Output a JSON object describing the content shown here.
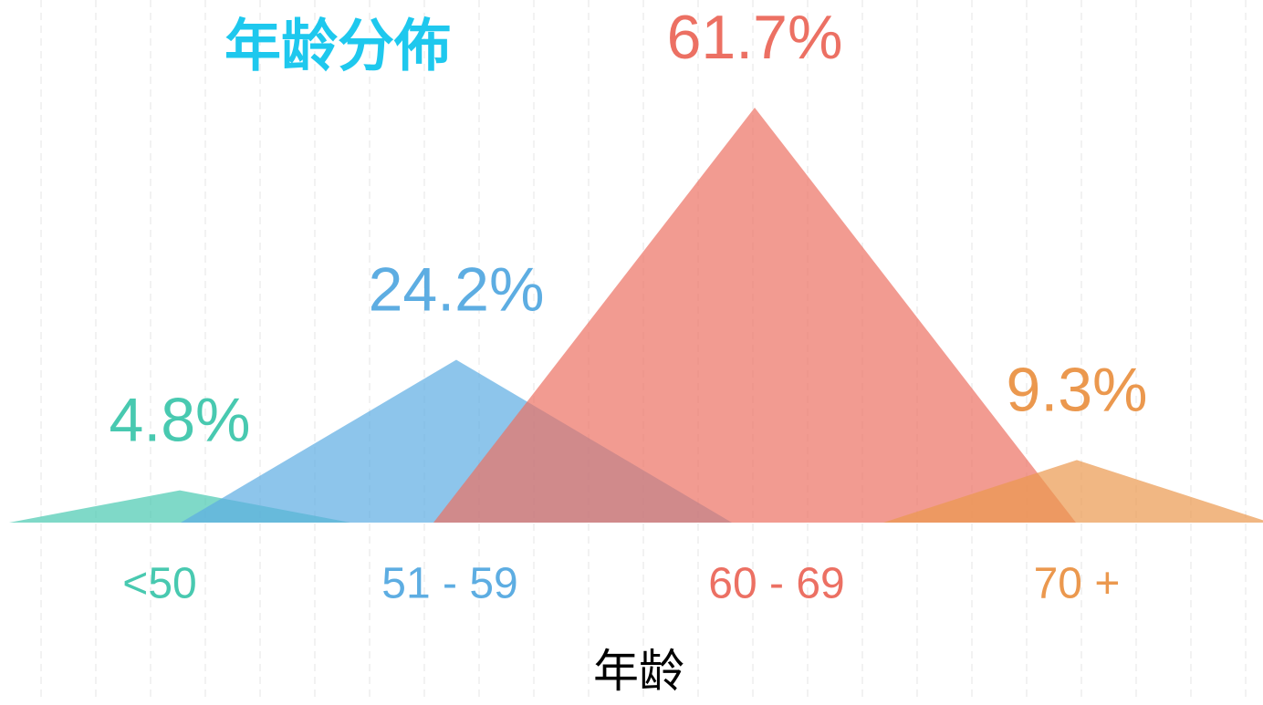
{
  "chart_data": {
    "type": "triangle_bar",
    "title": "年龄分佈",
    "x_label": "年龄",
    "categories": [
      "<50",
      "51 - 59",
      "60 - 69",
      "70 +"
    ],
    "values": [
      4.8,
      24.2,
      61.7,
      9.3
    ],
    "value_labels": [
      "4.8%",
      "24.2%",
      "61.7%",
      "9.3%"
    ],
    "colors": [
      "#48c9b0",
      "#5dade2",
      "#ec7063",
      "#eb984e"
    ]
  }
}
